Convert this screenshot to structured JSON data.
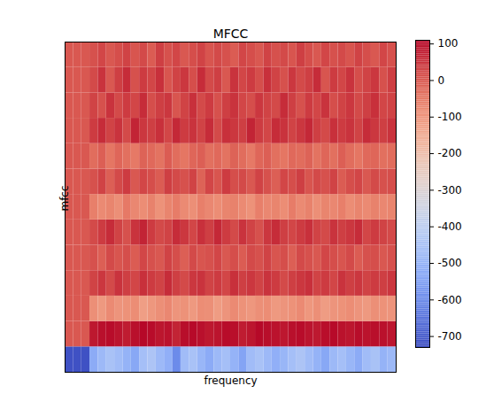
{
  "chart_data": {
    "type": "heatmap",
    "title": "MFCC",
    "x_label": "frequency",
    "y_label": "mfcc",
    "tick_labels": false,
    "cells": [
      [
        -720,
        -720,
        -720,
        -520,
        -480,
        -450,
        -470,
        -500,
        -530,
        -460,
        -440,
        -480,
        -510,
        -600,
        -470,
        -450,
        -490,
        -520,
        -480,
        -460,
        -500,
        -540,
        -470,
        -450,
        -480,
        -510,
        -490,
        -460,
        -440,
        -470,
        -500,
        -530,
        -480,
        -460,
        -490,
        -520,
        -470,
        -450,
        -500,
        -480
      ],
      [
        0,
        0,
        0,
        85,
        95,
        100,
        90,
        80,
        95,
        105,
        100,
        88,
        92,
        70,
        98,
        102,
        95,
        85,
        90,
        100,
        96,
        80,
        88,
        104,
        98,
        92,
        86,
        95,
        100,
        90,
        84,
        97,
        103,
        93,
        88,
        99,
        91,
        96,
        94,
        87
      ],
      [
        0,
        0,
        0,
        -90,
        -110,
        -80,
        -100,
        -95,
        -85,
        -120,
        -105,
        -90,
        -75,
        -100,
        -95,
        -110,
        -85,
        -90,
        -115,
        -100,
        -80,
        -95,
        -105,
        -90,
        -85,
        -110,
        -100,
        -95,
        -80,
        -105,
        -90,
        -115,
        -100,
        -95,
        -85,
        -100,
        -110,
        -90,
        -95,
        -100
      ],
      [
        0,
        0,
        0,
        30,
        45,
        20,
        50,
        35,
        25,
        55,
        40,
        30,
        60,
        35,
        20,
        45,
        50,
        30,
        40,
        25,
        55,
        35,
        45,
        30,
        50,
        40,
        20,
        35,
        45,
        55,
        30,
        40,
        25,
        50,
        35,
        45,
        30,
        40,
        35,
        45
      ],
      [
        0,
        0,
        0,
        10,
        -10,
        20,
        5,
        15,
        -5,
        25,
        10,
        0,
        30,
        15,
        -10,
        20,
        5,
        10,
        25,
        0,
        15,
        -5,
        20,
        10,
        30,
        5,
        15,
        -10,
        20,
        10,
        0,
        25,
        15,
        5,
        20,
        -5,
        10,
        15,
        0,
        10
      ],
      [
        0,
        0,
        0,
        20,
        40,
        60,
        30,
        10,
        50,
        70,
        40,
        20,
        30,
        60,
        45,
        25,
        55,
        35,
        65,
        40,
        20,
        50,
        30,
        10,
        45,
        60,
        35,
        25,
        40,
        55,
        30,
        20,
        50,
        35,
        45,
        60,
        25,
        40,
        30,
        20
      ],
      [
        0,
        0,
        0,
        -60,
        -80,
        -70,
        -90,
        -50,
        -75,
        -85,
        -65,
        -95,
        -70,
        -55,
        -80,
        -90,
        -60,
        -75,
        -85,
        -70,
        -65,
        -80,
        -95,
        -60,
        -75,
        -70,
        -85,
        -55,
        -80,
        -65,
        -90,
        -70,
        -75,
        -60,
        -85,
        -70,
        -80,
        -65,
        -75,
        -70
      ],
      [
        0,
        0,
        0,
        10,
        30,
        -10,
        20,
        40,
        0,
        25,
        15,
        -5,
        35,
        20,
        10,
        30,
        -15,
        25,
        5,
        40,
        15,
        20,
        0,
        30,
        10,
        -10,
        25,
        15,
        35,
        5,
        20,
        10,
        30,
        -5,
        15,
        25,
        0,
        20,
        10,
        15
      ],
      [
        0,
        0,
        0,
        -30,
        -10,
        -45,
        -20,
        -35,
        -50,
        -15,
        -25,
        -40,
        -5,
        -30,
        -45,
        -20,
        -10,
        -35,
        -25,
        -40,
        -15,
        -30,
        -50,
        -20,
        -10,
        -35,
        -45,
        -25,
        -30,
        -15,
        -40,
        -20,
        -35,
        -10,
        -30,
        -45,
        -25,
        -20,
        -35,
        -30
      ],
      [
        0,
        0,
        0,
        40,
        60,
        30,
        50,
        20,
        70,
        45,
        35,
        55,
        25,
        65,
        40,
        50,
        30,
        60,
        20,
        55,
        45,
        35,
        70,
        40,
        25,
        60,
        50,
        30,
        45,
        65,
        35,
        20,
        55,
        40,
        50,
        30,
        60,
        45,
        35,
        50
      ],
      [
        0,
        0,
        0,
        30,
        10,
        50,
        20,
        40,
        25,
        60,
        15,
        35,
        45,
        5,
        30,
        55,
        20,
        40,
        10,
        35,
        50,
        25,
        15,
        45,
        30,
        20,
        60,
        35,
        10,
        40,
        25,
        50,
        15,
        30,
        45,
        20,
        35,
        55,
        25,
        30
      ],
      [
        0,
        0,
        0,
        20,
        50,
        0,
        35,
        60,
        10,
        40,
        25,
        55,
        5,
        30,
        45,
        15,
        60,
        20,
        35,
        0,
        50,
        25,
        40,
        15,
        55,
        30,
        10,
        45,
        20,
        35,
        60,
        5,
        40,
        25,
        50,
        15,
        30,
        45,
        10,
        35
      ],
      [
        0,
        0,
        0,
        10,
        25,
        0,
        15,
        30,
        5,
        20,
        -5,
        35,
        10,
        25,
        0,
        15,
        30,
        5,
        20,
        10,
        -5,
        25,
        15,
        0,
        30,
        10,
        20,
        5,
        35,
        15,
        0,
        25,
        10,
        20,
        5,
        30,
        15,
        0,
        25,
        10
      ]
    ],
    "colorbar": {
      "lim": [
        -730,
        110
      ],
      "ticks": [
        100,
        0,
        -100,
        -200,
        -300,
        -400,
        -500,
        -600,
        -700
      ]
    }
  }
}
